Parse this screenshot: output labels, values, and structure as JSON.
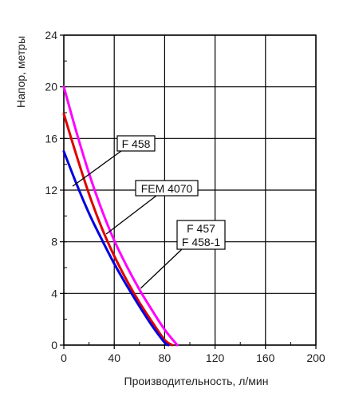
{
  "chart_data": {
    "type": "line",
    "xlabel": "Производительность, л/мин",
    "ylabel": "Напор, метры",
    "xlim": [
      0,
      200
    ],
    "ylim": [
      0,
      24
    ],
    "x_ticks": [
      "0",
      "40",
      "80",
      "120",
      "160",
      "200"
    ],
    "y_ticks": [
      "0",
      "4",
      "8",
      "12",
      "16",
      "20",
      "24"
    ],
    "grid": true,
    "series": [
      {
        "name": "F 458",
        "color": "#0000e0",
        "x": [
          0,
          10,
          20,
          30,
          40,
          50,
          60,
          70,
          80,
          83
        ],
        "y": [
          15,
          12.5,
          10.2,
          8.2,
          6.3,
          4.6,
          3.0,
          1.5,
          0.2,
          0
        ]
      },
      {
        "name": "FEM 4070",
        "color": "#e00000",
        "x": [
          0,
          10,
          20,
          30,
          40,
          50,
          60,
          70,
          80,
          86
        ],
        "y": [
          17.9,
          14.7,
          11.7,
          9.1,
          6.9,
          5.0,
          3.3,
          1.8,
          0.4,
          0
        ]
      },
      {
        "name": "F 457 / F 458-1",
        "label_lines": [
          "F 457",
          "F 458-1"
        ],
        "color": "#ff00ff",
        "x": [
          0,
          10,
          20,
          30,
          40,
          50,
          60,
          70,
          80,
          90
        ],
        "y": [
          20,
          16.5,
          13.3,
          10.5,
          8.1,
          6.1,
          4.3,
          2.7,
          1.2,
          0
        ]
      }
    ]
  }
}
